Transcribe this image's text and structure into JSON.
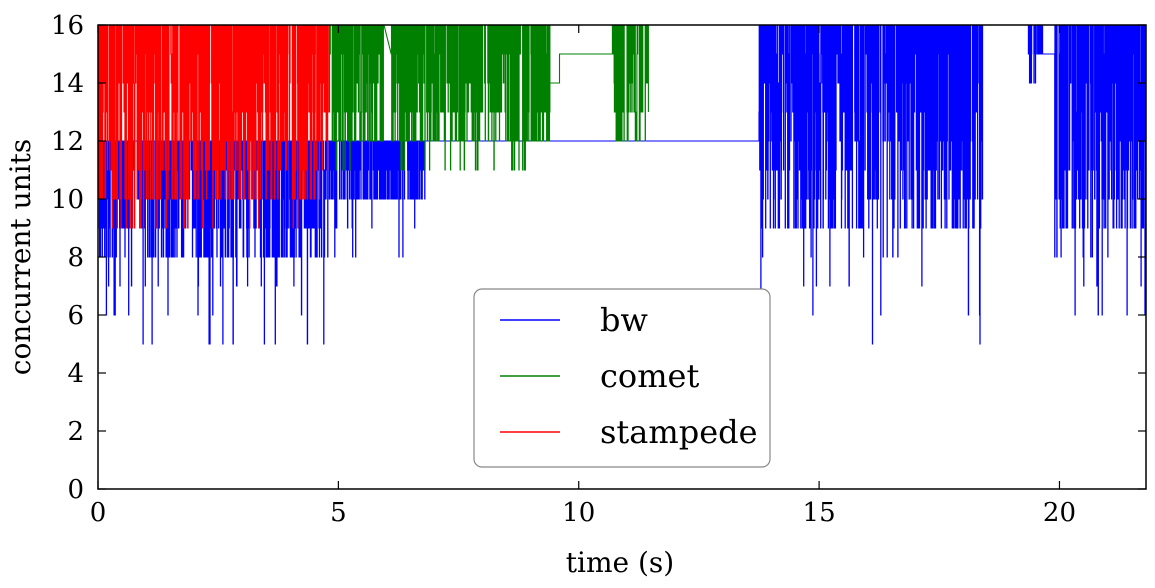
{
  "chart_data": {
    "type": "line",
    "xlabel": "time (s)",
    "ylabel": "concurrent units",
    "xlim": [
      0,
      21.8
    ],
    "ylim": [
      0,
      16
    ],
    "xticks": [
      0,
      5,
      10,
      15,
      20
    ],
    "yticks": [
      0,
      2,
      4,
      6,
      8,
      10,
      12,
      14,
      16
    ],
    "grid": false,
    "legend": "bottom-center",
    "series": [
      {
        "name": "bw",
        "color": "#0000ff",
        "segments": [
          {
            "x_start": 0.0,
            "x_end": 4.8,
            "low": 8,
            "high": 12,
            "min": 5,
            "max": 12
          },
          {
            "x_start": 4.8,
            "x_end": 6.8,
            "low": 10,
            "high": 12,
            "min": 8,
            "max": 12
          },
          {
            "x_start": 6.8,
            "x_end": 13.75,
            "level": 12
          },
          {
            "x_start": 13.75,
            "x_end": 18.4,
            "low": 9,
            "high": 16,
            "min": 5,
            "max": 16
          },
          {
            "x_start": 19.35,
            "x_end": 19.65,
            "low": 15,
            "high": 16,
            "min": 14,
            "max": 16
          },
          {
            "x_start": 19.65,
            "x_end": 19.9,
            "level": 15
          },
          {
            "x_start": 19.9,
            "x_end": 21.8,
            "low": 9,
            "high": 16,
            "min": 6,
            "max": 16
          }
        ]
      },
      {
        "name": "comet",
        "color": "#008000",
        "segments": [
          {
            "x_start": 4.8,
            "x_end": 5.95,
            "low": 12,
            "high": 16,
            "min": 11,
            "max": 16
          },
          {
            "x_start": 6.1,
            "x_end": 9.4,
            "low": 12,
            "high": 16,
            "min": 11,
            "max": 16
          },
          {
            "x_start": 9.4,
            "x_end": 9.6,
            "level": 14
          },
          {
            "x_start": 9.6,
            "x_end": 10.7,
            "level": 15
          },
          {
            "x_start": 10.7,
            "x_end": 11.45,
            "low": 12,
            "high": 16,
            "min": 11,
            "max": 16
          }
        ]
      },
      {
        "name": "stampede",
        "color": "#ff0000",
        "segments": [
          {
            "x_start": 0.0,
            "x_end": 4.8,
            "low": 10,
            "high": 16,
            "min": 9,
            "max": 16
          }
        ]
      }
    ]
  }
}
